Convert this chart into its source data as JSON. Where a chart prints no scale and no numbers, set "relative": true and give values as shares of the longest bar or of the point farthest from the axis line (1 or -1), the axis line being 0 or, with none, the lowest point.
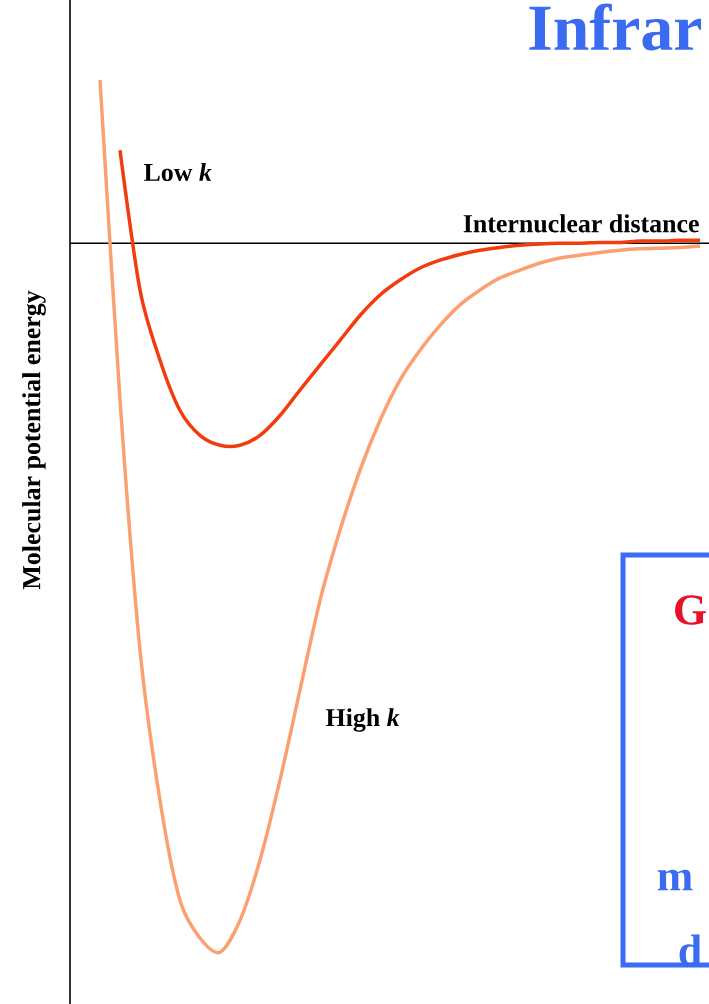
{
  "chart_data": {
    "type": "line",
    "relative": true,
    "title": "Infrar",
    "xlabel": "Internuclear distance",
    "ylabel": "Molecular potential energy",
    "legend": false,
    "categories": [
      null,
      null,
      null,
      null,
      null,
      null,
      null,
      null,
      null,
      null,
      null,
      null,
      null,
      null,
      null,
      null,
      null,
      null,
      null,
      null,
      null,
      null,
      null,
      null,
      null,
      null,
      null,
      null,
      null,
      null,
      null
    ],
    "series": [
      {
        "name": "Low *k*",
        "color": "#f23c0e",
        "values": [
          null,
          0.131,
          -0.066,
          -0.165,
          -0.236,
          -0.271,
          -0.285,
          -0.285,
          -0.271,
          -0.243,
          -0.207,
          -0.172,
          -0.137,
          -0.102,
          -0.073,
          -0.052,
          -0.035,
          -0.024,
          -0.016,
          -0.01,
          -0.006,
          -0.003,
          -0.001,
          0,
          0,
          0.001,
          0.001,
          0.003,
          0.003,
          0.004,
          0.004
        ]
      },
      {
        "name": "High *k*",
        "color": "#fba070",
        "values": [
          0.23,
          -0.221,
          -0.574,
          -0.786,
          -0.927,
          -0.98,
          -1,
          -0.955,
          -0.87,
          -0.757,
          -0.63,
          -0.504,
          -0.405,
          -0.32,
          -0.25,
          -0.193,
          -0.151,
          -0.116,
          -0.087,
          -0.066,
          -0.049,
          -0.038,
          -0.028,
          -0.021,
          -0.017,
          -0.013,
          -0.01,
          -0.008,
          -0.007,
          -0.006,
          -0.004
        ]
      }
    ],
    "annotations": [
      "G",
      "m",
      "d"
    ]
  }
}
